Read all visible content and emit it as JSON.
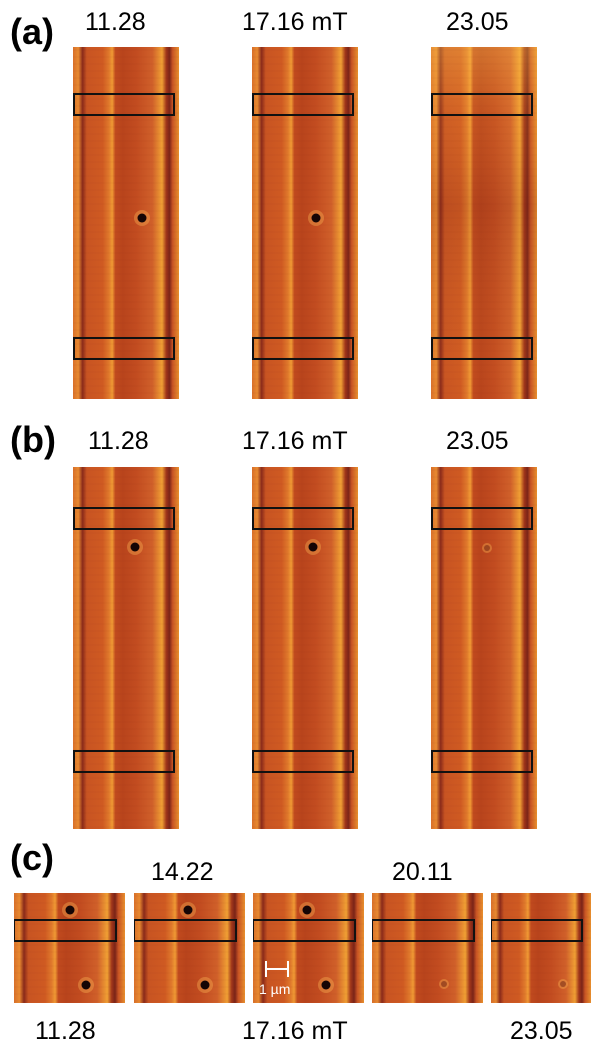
{
  "figure": {
    "rows": [
      {
        "id": "a",
        "label": "(a)",
        "field_labels": [
          "11.28",
          "17.16 mT",
          "23.05"
        ],
        "panels": [
          {
            "field_label": "11.28",
            "skyrmion_visible": true
          },
          {
            "field_label": "17.16 mT",
            "skyrmion_visible": true
          },
          {
            "field_label": "23.05",
            "skyrmion_visible": false
          }
        ]
      },
      {
        "id": "b",
        "label": "(b)",
        "field_labels": [
          "11.28",
          "17.16 mT",
          "23.05"
        ],
        "panels": [
          {
            "field_label": "11.28",
            "skyrmion_visible": true
          },
          {
            "field_label": "17.16 mT",
            "skyrmion_visible": true
          },
          {
            "field_label": "23.05",
            "skyrmion_visible": true
          }
        ]
      },
      {
        "id": "c",
        "label": "(c)",
        "top_field_labels": [
          "14.22",
          "20.11"
        ],
        "bottom_field_labels": [
          "11.28",
          "17.16 mT",
          "23.05"
        ],
        "scale_bar_label": "1 µm",
        "panel_count": 5
      }
    ],
    "colors": {
      "background": "#ffffff",
      "image_base": "#cf5a22",
      "stripe_light": "#f0a030",
      "stripe_dark": "#8a2a1a",
      "box_stroke": "#111111",
      "scale_bar": "#ffffff"
    }
  }
}
